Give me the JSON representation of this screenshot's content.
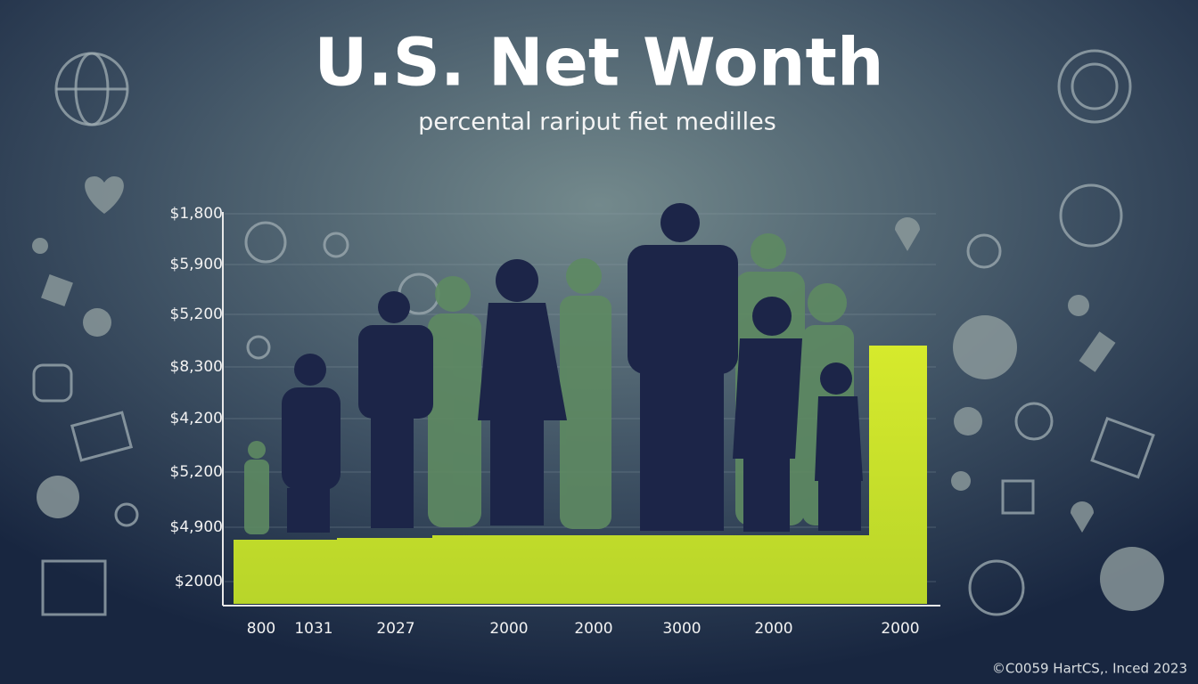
{
  "header": {
    "title": "U.S. Net Wonth",
    "subtitle": "percental rariput fiet medilles"
  },
  "chart": {
    "y_labels": [
      "$1,800",
      "$5,900",
      "$5,200",
      "$8,300",
      "$4,200",
      "$5,200",
      "$4,900",
      "$2000"
    ],
    "x_labels": [
      "800",
      "1031",
      "2027",
      "2000",
      "2000",
      "3000",
      "2000",
      "2000"
    ]
  },
  "footer": {
    "credit": "©C0059 HartCS,. Inced 2023"
  }
}
